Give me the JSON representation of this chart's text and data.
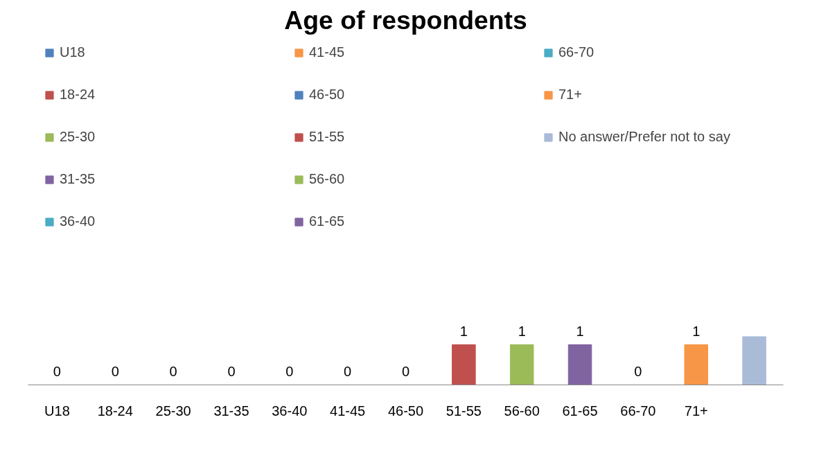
{
  "chart_data": {
    "type": "bar",
    "title": "Age of respondents",
    "categories": [
      "U18",
      "18-24",
      "25-30",
      "31-35",
      "36-40",
      "41-45",
      "46-50",
      "51-55",
      "56-60",
      "61-65",
      "66-70",
      "71+",
      null
    ],
    "series": [
      {
        "name": "U18",
        "color": "#4f81bd",
        "values": [
          0,
          null,
          null,
          null,
          null,
          null,
          null,
          null,
          null,
          null,
          null,
          null,
          null
        ]
      },
      {
        "name": "18-24",
        "color": "#c0504d",
        "values": [
          null,
          0,
          null,
          null,
          null,
          null,
          null,
          null,
          null,
          null,
          null,
          null,
          null
        ]
      },
      {
        "name": "25-30",
        "color": "#9bbb59",
        "values": [
          null,
          null,
          0,
          null,
          null,
          null,
          null,
          null,
          null,
          null,
          null,
          null,
          null
        ]
      },
      {
        "name": "31-35",
        "color": "#8064a2",
        "values": [
          null,
          null,
          null,
          0,
          null,
          null,
          null,
          null,
          null,
          null,
          null,
          null,
          null
        ]
      },
      {
        "name": "36-40",
        "color": "#4bacc6",
        "values": [
          null,
          null,
          null,
          null,
          0,
          null,
          null,
          null,
          null,
          null,
          null,
          null,
          null
        ]
      },
      {
        "name": "41-45",
        "color": "#f79646",
        "values": [
          null,
          null,
          null,
          null,
          null,
          0,
          null,
          null,
          null,
          null,
          null,
          null,
          null
        ]
      },
      {
        "name": "46-50",
        "color": "#4f81bd",
        "values": [
          null,
          null,
          null,
          null,
          null,
          null,
          0,
          null,
          null,
          null,
          null,
          null,
          null
        ]
      },
      {
        "name": "51-55",
        "color": "#c0504d",
        "values": [
          null,
          null,
          null,
          null,
          null,
          null,
          null,
          1,
          null,
          null,
          null,
          null,
          null
        ]
      },
      {
        "name": "56-60",
        "color": "#9bbb59",
        "values": [
          null,
          null,
          null,
          null,
          null,
          null,
          null,
          null,
          1,
          null,
          null,
          null,
          null
        ]
      },
      {
        "name": "61-65",
        "color": "#8064a2",
        "values": [
          null,
          null,
          null,
          null,
          null,
          null,
          null,
          null,
          null,
          1,
          null,
          null,
          null
        ]
      },
      {
        "name": "66-70",
        "color": "#4bacc6",
        "values": [
          null,
          null,
          null,
          null,
          null,
          null,
          null,
          null,
          null,
          null,
          0,
          null,
          null
        ]
      },
      {
        "name": "71+",
        "color": "#f79646",
        "values": [
          null,
          null,
          null,
          null,
          null,
          null,
          null,
          null,
          null,
          null,
          null,
          1,
          null
        ]
      },
      {
        "name": "No answer/Prefer not to say",
        "color": "#aabbd8",
        "values": [
          null,
          null,
          null,
          null,
          null,
          null,
          null,
          null,
          null,
          null,
          null,
          null,
          1.2
        ],
        "value_labels": [
          null,
          null,
          null,
          null,
          null,
          null,
          null,
          null,
          null,
          null,
          null,
          null,
          null
        ]
      }
    ],
    "data_labels": true,
    "legend": "top"
  }
}
